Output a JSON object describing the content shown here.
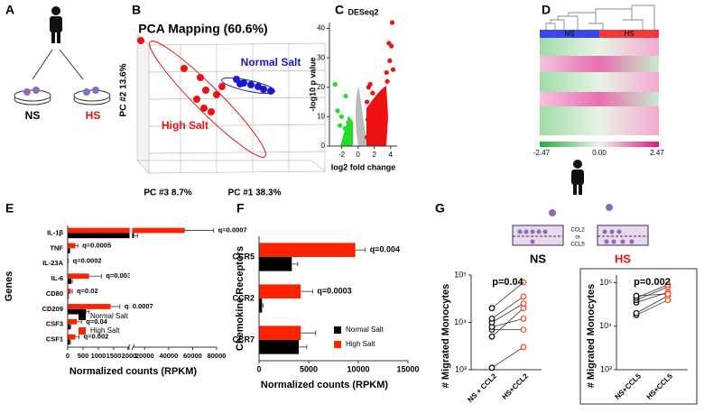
{
  "panels": {
    "A": {
      "label": "A",
      "groups": [
        "NS",
        "HS"
      ]
    },
    "B": {
      "label": "B",
      "title": "PCA Mapping (60.6%)",
      "groups": [
        "Normal Salt",
        "High Salt"
      ],
      "axes": [
        "PC #2 13.6%",
        "PC #3 8.7%",
        "PC #1 38.3%"
      ]
    },
    "C": {
      "label": "C"
    },
    "D": {
      "label": "D",
      "groups": [
        "NS",
        "HS"
      ],
      "scale": [
        "-2.47",
        "0.00",
        "2.47"
      ]
    },
    "E": {
      "label": "E"
    },
    "F": {
      "label": "F"
    },
    "G": {
      "label": "G",
      "stimuli": [
        "CCL2",
        "or",
        "CCL5"
      ],
      "groups": [
        "NS",
        "HS"
      ]
    }
  },
  "chart_data": [
    {
      "type": "scatter",
      "title": "DESeq2",
      "xlabel": "log2 fold change",
      "ylabel": "-log10 p value",
      "x": [
        4.2,
        3.8,
        4.1,
        3.9,
        4.3,
        3.5,
        3.6,
        3.2,
        1.5,
        1.3,
        1.8,
        2.5,
        2.0,
        1.1,
        2.8,
        3.0,
        1.6,
        1.2,
        2.2,
        1.4,
        2.6,
        1.1,
        1.9,
        -2.8,
        -1.5,
        -2.5,
        -2.0,
        -1.2,
        -1.6,
        -1.1,
        -2.2,
        -1.3
      ],
      "values": [
        42,
        35,
        34,
        29,
        26,
        25,
        22,
        18,
        21,
        20,
        18,
        16,
        15,
        15,
        14,
        12,
        11,
        9,
        10,
        6,
        8,
        3,
        4,
        21,
        17,
        12,
        10,
        8,
        6,
        4,
        7,
        2
      ],
      "colors": [
        "#ee1111",
        "#ee1111",
        "#ee1111",
        "#ee1111",
        "#ee1111",
        "#ee1111",
        "#ee1111",
        "#ee1111",
        "#ee1111",
        "#ee1111",
        "#ee1111",
        "#ee1111",
        "#ee1111",
        "#ee1111",
        "#ee1111",
        "#ee1111",
        "#ee1111",
        "#ee1111",
        "#ee1111",
        "#ee1111",
        "#ee1111",
        "#ee1111",
        "#ee1111",
        "#22dd22",
        "#22dd22",
        "#22dd22",
        "#22dd22",
        "#22dd22",
        "#22dd22",
        "#22dd22",
        "#22dd22",
        "#22dd22"
      ],
      "xlim": [
        -3.5,
        4.8
      ],
      "xticks": [
        -2,
        0,
        2,
        4
      ],
      "ylim": [
        0,
        42
      ],
      "yticks": [
        0,
        10,
        20,
        30,
        40
      ]
    },
    {
      "type": "hbar",
      "categories": [
        "IL-1β",
        "TNF",
        "IL-23A",
        "IL-6",
        "CD80",
        "CD209",
        "CSF3",
        "CSF1"
      ],
      "series": [
        {
          "name": "Normal Salt",
          "color": "#000000",
          "values": [
            11000,
            60,
            5,
            120,
            20,
            600,
            80,
            70
          ],
          "errors": [
            3000,
            10,
            2,
            30,
            5,
            100,
            20,
            20
          ]
        },
        {
          "name": "High Salt",
          "color": "#ff2200",
          "values": [
            53500,
            250,
            15,
            700,
            100,
            1400,
            300,
            250
          ],
          "errors": [
            24000,
            80,
            5,
            400,
            50,
            300,
            150,
            120
          ]
        }
      ],
      "annotations": [
        "q=0.0007",
        "q=0.0005",
        "q=0.0002",
        "q=0.003",
        "q=0.02",
        "q=0.0007",
        "q=0.04",
        "q=0.002"
      ],
      "xlabel": "Normalized counts (RPKM)",
      "ylabel": "Genes",
      "xlim": [
        0,
        80000
      ],
      "x_break": [
        2000,
        10000
      ],
      "xticks": [
        0,
        500,
        1000,
        1500,
        2000,
        20000,
        40000,
        60000,
        80000
      ],
      "legend": "lower right"
    },
    {
      "type": "hbar",
      "categories": [
        "CCR5",
        "CCR2",
        "CCR7"
      ],
      "series": [
        {
          "name": "Normal Salt",
          "color": "#000000",
          "values": [
            3300,
            300,
            4000
          ],
          "errors": [
            600,
            100,
            800
          ]
        },
        {
          "name": "High Salt",
          "color": "#ff2200",
          "values": [
            9700,
            4200,
            4200
          ],
          "errors": [
            1000,
            1200,
            1500
          ]
        }
      ],
      "annotations": [
        "q=0.004",
        "q=0.0003",
        null
      ],
      "xlabel": "Normalized counts (RPKM)",
      "ylabel": "Chemokine Receptors",
      "xlim": [
        0,
        15000
      ],
      "xticks": [
        0,
        5000,
        10000,
        15000
      ],
      "legend": "lower right"
    },
    {
      "type": "paired",
      "categories": [
        "NS + CCL2",
        "HS+CCL2"
      ],
      "values": [
        [
          1100,
          5000,
          7000,
          8000,
          10000,
          12000,
          20000
        ],
        [
          3000,
          20000,
          7000,
          12000,
          25000,
          35000,
          70000
        ]
      ],
      "colors": [
        "#000000",
        "#ff4411"
      ],
      "annotation": "p=0.04",
      "ylabel": "# Migrated Monocytes",
      "log": true,
      "ylim": [
        1000,
        100000
      ],
      "yticks": [
        {
          "value": 1000,
          "label": "10³"
        },
        {
          "value": 10000,
          "label": "10⁴"
        },
        {
          "value": 100000,
          "label": "10⁵"
        }
      ]
    },
    {
      "type": "paired",
      "categories": [
        "NS+CCL5",
        "HS+CCL5"
      ],
      "values": [
        [
          18000,
          20000,
          35000,
          40000,
          45000,
          50000
        ],
        [
          40000,
          50000,
          60000,
          80000,
          90000,
          55000
        ]
      ],
      "colors": [
        "#000000",
        "#ff4411"
      ],
      "annotation": "p=0.002",
      "ylabel": "# Migrated Monocytes",
      "log": true,
      "ylim": [
        1000,
        150000
      ],
      "yticks": [
        {
          "value": 1000,
          "label": "10³"
        },
        {
          "value": 10000,
          "label": "10⁴"
        },
        {
          "value": 100000,
          "label": "10⁵"
        }
      ]
    }
  ]
}
